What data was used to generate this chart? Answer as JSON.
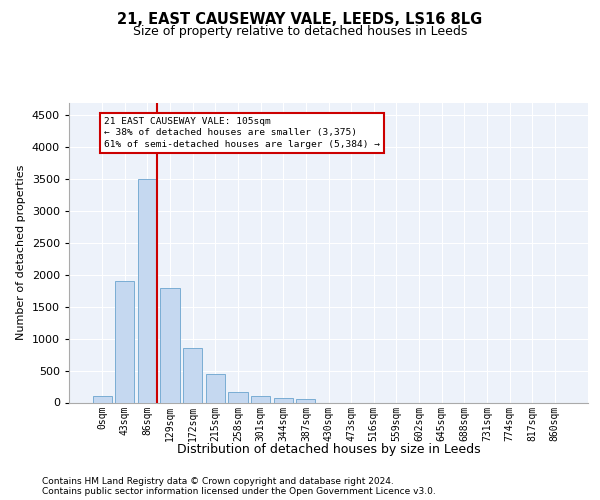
{
  "title1": "21, EAST CAUSEWAY VALE, LEEDS, LS16 8LG",
  "title2": "Size of property relative to detached houses in Leeds",
  "xlabel": "Distribution of detached houses by size in Leeds",
  "ylabel": "Number of detached properties",
  "bar_labels": [
    "0sqm",
    "43sqm",
    "86sqm",
    "129sqm",
    "172sqm",
    "215sqm",
    "258sqm",
    "301sqm",
    "344sqm",
    "387sqm",
    "430sqm",
    "473sqm",
    "516sqm",
    "559sqm",
    "602sqm",
    "645sqm",
    "688sqm",
    "731sqm",
    "774sqm",
    "817sqm",
    "860sqm"
  ],
  "bar_values": [
    100,
    1900,
    3500,
    1800,
    850,
    450,
    160,
    100,
    70,
    55,
    0,
    0,
    0,
    0,
    0,
    0,
    0,
    0,
    0,
    0,
    0
  ],
  "bar_color": "#c5d8f0",
  "bar_edge_color": "#7aadd4",
  "red_line_x": 2.44,
  "annotation_text": "21 EAST CAUSEWAY VALE: 105sqm\n← 38% of detached houses are smaller (3,375)\n61% of semi-detached houses are larger (5,384) →",
  "red_line_color": "#cc0000",
  "ylim": [
    0,
    4700
  ],
  "yticks": [
    0,
    500,
    1000,
    1500,
    2000,
    2500,
    3000,
    3500,
    4000,
    4500
  ],
  "footer1": "Contains HM Land Registry data © Crown copyright and database right 2024.",
  "footer2": "Contains public sector information licensed under the Open Government Licence v3.0.",
  "bg_color": "#edf2fa",
  "grid_color": "#ffffff"
}
